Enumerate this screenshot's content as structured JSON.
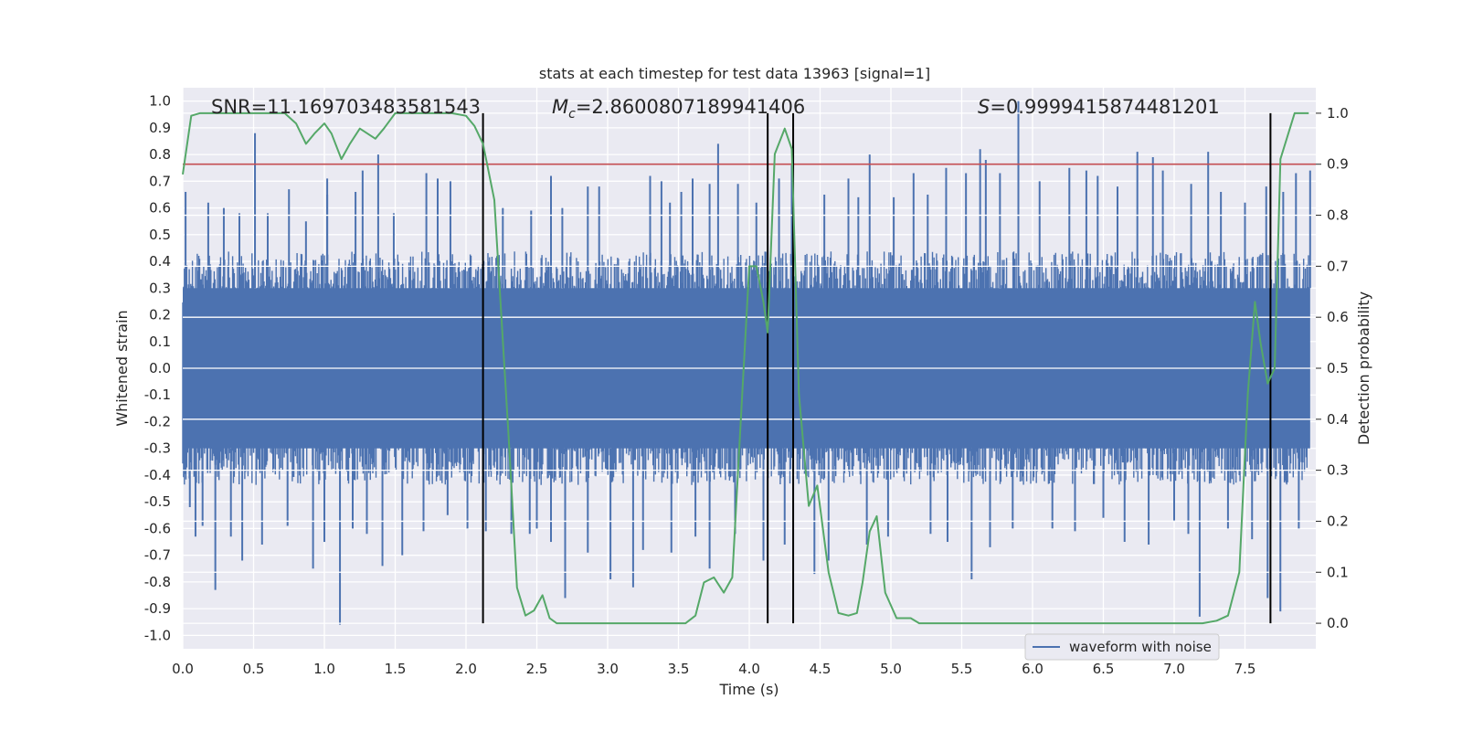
{
  "chart_data": {
    "type": "line",
    "title": "stats at each timestep for test data 13963 [signal=1]",
    "xlabel": "Time (s)",
    "ylabel": "Whitened strain",
    "ylabel_right": "Detection probability",
    "xlim": [
      0.0,
      8.0
    ],
    "ylim": [
      -1.05,
      1.05
    ],
    "ylim_right": [
      -0.05,
      1.05
    ],
    "xticks": [
      0.0,
      0.5,
      1.0,
      1.5,
      2.0,
      2.5,
      3.0,
      3.5,
      4.0,
      4.5,
      5.0,
      5.5,
      6.0,
      6.5,
      7.0,
      7.5
    ],
    "xtick_labels": [
      "0.0",
      "0.5",
      "1.0",
      "1.5",
      "2.0",
      "2.5",
      "3.0",
      "3.5",
      "4.0",
      "4.5",
      "5.0",
      "5.5",
      "6.0",
      "6.5",
      "7.0",
      "7.5"
    ],
    "yticks": [
      1.0,
      0.9,
      0.8,
      0.7,
      0.6,
      0.5,
      0.4,
      0.3,
      0.2,
      0.1,
      0.0,
      -0.1,
      -0.2,
      -0.3,
      -0.4,
      -0.5,
      -0.6,
      -0.7,
      -0.8,
      -0.9,
      -1.0
    ],
    "ytick_labels": [
      "1.0",
      "0.9",
      "0.8",
      "0.7",
      "0.6",
      "0.5",
      "0.4",
      "0.3",
      "0.2",
      "0.1",
      "0.0",
      "-0.1",
      "-0.2",
      "-0.3",
      "-0.4",
      "-0.5",
      "-0.6",
      "-0.7",
      "-0.8",
      "-0.9",
      "-1.0"
    ],
    "yticks_right": [
      1.0,
      0.9,
      0.8,
      0.7,
      0.6,
      0.5,
      0.4,
      0.3,
      0.2,
      0.1,
      0.0
    ],
    "ytick_labels_right": [
      "1.0",
      "0.9",
      "0.8",
      "0.7",
      "0.6",
      "0.5",
      "0.4",
      "0.3",
      "0.2",
      "0.1",
      "0.0"
    ],
    "annotations": {
      "snr": "SNR=11.169703483581543",
      "mc_symbol": "M",
      "mc_subscript": "c",
      "mc_value": "=2.8600807189941406",
      "s_symbol": "S",
      "s_value": "=0.9999415874481201"
    },
    "threshold": {
      "value": 0.9,
      "axis": "right",
      "color": "#c44e52"
    },
    "vertical_lines": [
      2.12,
      4.13,
      4.31,
      7.68
    ],
    "legend": {
      "position": "bottom-right",
      "entries": [
        {
          "label": "waveform with noise",
          "color": "#4c72b0"
        }
      ]
    },
    "waveform": {
      "name": "waveform with noise",
      "color": "#4c72b0",
      "envelope_abs": 0.38,
      "spikes_pos": [
        [
          0.02,
          0.66
        ],
        [
          0.18,
          0.62
        ],
        [
          0.29,
          0.6
        ],
        [
          0.4,
          0.58
        ],
        [
          0.51,
          0.88
        ],
        [
          0.6,
          0.58
        ],
        [
          0.75,
          0.67
        ],
        [
          0.87,
          0.55
        ],
        [
          1.02,
          0.65
        ],
        [
          1.02,
          0.71
        ],
        [
          1.22,
          0.66
        ],
        [
          1.27,
          0.74
        ],
        [
          1.38,
          0.8
        ],
        [
          1.49,
          0.58
        ],
        [
          1.72,
          0.73
        ],
        [
          1.8,
          0.71
        ],
        [
          1.89,
          0.7
        ],
        [
          2.26,
          0.6
        ],
        [
          2.46,
          0.59
        ],
        [
          2.6,
          0.72
        ],
        [
          2.68,
          0.6
        ],
        [
          2.86,
          0.68
        ],
        [
          2.94,
          0.68
        ],
        [
          3.3,
          0.72
        ],
        [
          3.38,
          0.7
        ],
        [
          3.44,
          0.62
        ],
        [
          3.52,
          0.66
        ],
        [
          3.6,
          0.71
        ],
        [
          3.72,
          0.69
        ],
        [
          3.78,
          0.84
        ],
        [
          3.92,
          0.69
        ],
        [
          4.05,
          0.62
        ],
        [
          4.21,
          0.71
        ],
        [
          4.3,
          0.76
        ],
        [
          4.53,
          0.65
        ],
        [
          4.7,
          0.71
        ],
        [
          4.77,
          0.64
        ],
        [
          4.85,
          0.8
        ],
        [
          5.02,
          0.64
        ],
        [
          5.16,
          0.73
        ],
        [
          5.26,
          0.65
        ],
        [
          5.39,
          0.75
        ],
        [
          5.53,
          0.73
        ],
        [
          5.63,
          0.82
        ],
        [
          5.67,
          0.78
        ],
        [
          5.77,
          0.73
        ],
        [
          5.9,
          1.0
        ],
        [
          6.05,
          0.7
        ],
        [
          6.26,
          0.75
        ],
        [
          6.38,
          0.74
        ],
        [
          6.46,
          0.72
        ],
        [
          6.6,
          0.68
        ],
        [
          6.74,
          0.81
        ],
        [
          6.85,
          0.79
        ],
        [
          6.92,
          0.74
        ],
        [
          7.12,
          0.69
        ],
        [
          7.24,
          0.81
        ],
        [
          7.33,
          0.66
        ],
        [
          7.5,
          0.62
        ],
        [
          7.65,
          0.68
        ],
        [
          7.77,
          0.66
        ],
        [
          7.86,
          0.73
        ],
        [
          7.96,
          0.74
        ]
      ],
      "spikes_neg": [
        [
          0.05,
          -0.52
        ],
        [
          0.09,
          -0.63
        ],
        [
          0.14,
          -0.59
        ],
        [
          0.23,
          -0.83
        ],
        [
          0.34,
          -0.63
        ],
        [
          0.42,
          -0.72
        ],
        [
          0.56,
          -0.66
        ],
        [
          0.74,
          -0.59
        ],
        [
          0.92,
          -0.75
        ],
        [
          1.0,
          -0.65
        ],
        [
          1.11,
          -0.96
        ],
        [
          1.2,
          -0.6
        ],
        [
          1.3,
          -0.62
        ],
        [
          1.41,
          -0.74
        ],
        [
          1.55,
          -0.7
        ],
        [
          1.7,
          -0.61
        ],
        [
          1.87,
          -0.55
        ],
        [
          2.01,
          -0.6
        ],
        [
          2.14,
          -0.61
        ],
        [
          2.32,
          -0.62
        ],
        [
          2.45,
          -0.62
        ],
        [
          2.5,
          -0.6
        ],
        [
          2.6,
          -0.65
        ],
        [
          2.7,
          -0.86
        ],
        [
          2.86,
          -0.69
        ],
        [
          3.02,
          -0.79
        ],
        [
          3.18,
          -0.82
        ],
        [
          3.25,
          -0.68
        ],
        [
          3.45,
          -0.69
        ],
        [
          3.62,
          -0.63
        ],
        [
          3.72,
          -0.75
        ],
        [
          3.9,
          -0.62
        ],
        [
          4.1,
          -0.72
        ],
        [
          4.25,
          -0.66
        ],
        [
          4.46,
          -0.77
        ],
        [
          4.56,
          -0.72
        ],
        [
          4.83,
          -0.66
        ],
        [
          4.98,
          -0.63
        ],
        [
          5.28,
          -0.62
        ],
        [
          5.4,
          -0.65
        ],
        [
          5.57,
          -0.79
        ],
        [
          5.7,
          -0.67
        ],
        [
          5.86,
          -0.6
        ],
        [
          6.14,
          -0.6
        ],
        [
          6.3,
          -0.61
        ],
        [
          6.5,
          -0.56
        ],
        [
          6.65,
          -0.65
        ],
        [
          6.82,
          -0.66
        ],
        [
          7.0,
          -0.57
        ],
        [
          7.1,
          -0.62
        ],
        [
          7.18,
          -0.93
        ],
        [
          7.38,
          -0.6
        ],
        [
          7.55,
          -0.64
        ],
        [
          7.66,
          -0.86
        ],
        [
          7.75,
          -0.91
        ],
        [
          7.88,
          -0.6
        ]
      ]
    },
    "probability": {
      "name": "Detection probability",
      "color": "#55a868",
      "axis": "right",
      "x": [
        0.0,
        0.06,
        0.12,
        0.3,
        0.5,
        0.72,
        0.8,
        0.87,
        0.93,
        1.0,
        1.05,
        1.12,
        1.18,
        1.25,
        1.36,
        1.42,
        1.5,
        1.7,
        1.9,
        2.0,
        2.06,
        2.12,
        2.2,
        2.3,
        2.36,
        2.42,
        2.48,
        2.54,
        2.59,
        2.64,
        2.72,
        2.8,
        2.9,
        3.05,
        3.2,
        3.4,
        3.55,
        3.62,
        3.68,
        3.75,
        3.82,
        3.88,
        3.95,
        4.0,
        4.05,
        4.1,
        4.13,
        4.18,
        4.25,
        4.3,
        4.35,
        4.42,
        4.48,
        4.56,
        4.63,
        4.7,
        4.76,
        4.8,
        4.85,
        4.9,
        4.96,
        5.04,
        5.14,
        5.2,
        5.4,
        5.6,
        5.9,
        6.3,
        6.7,
        7.0,
        7.2,
        7.3,
        7.38,
        7.46,
        7.52,
        7.57,
        7.61,
        7.66,
        7.71,
        7.75,
        7.85,
        7.95
      ],
      "y": [
        0.88,
        0.995,
        1.0,
        1.0,
        1.0,
        1.0,
        0.98,
        0.94,
        0.96,
        0.98,
        0.96,
        0.91,
        0.94,
        0.97,
        0.95,
        0.97,
        1.0,
        1.0,
        1.0,
        0.995,
        0.975,
        0.94,
        0.83,
        0.37,
        0.07,
        0.015,
        0.025,
        0.055,
        0.01,
        0.0,
        0.0,
        0.0,
        0.0,
        0.0,
        0.0,
        0.0,
        0.0,
        0.015,
        0.08,
        0.09,
        0.06,
        0.09,
        0.45,
        0.7,
        0.7,
        0.63,
        0.57,
        0.92,
        0.97,
        0.93,
        0.45,
        0.23,
        0.27,
        0.1,
        0.02,
        0.015,
        0.02,
        0.08,
        0.18,
        0.21,
        0.06,
        0.01,
        0.01,
        0.0,
        0.0,
        0.0,
        0.0,
        0.0,
        0.0,
        0.0,
        0.0,
        0.005,
        0.015,
        0.1,
        0.45,
        0.63,
        0.55,
        0.47,
        0.5,
        0.91,
        1.0,
        1.0
      ]
    }
  }
}
